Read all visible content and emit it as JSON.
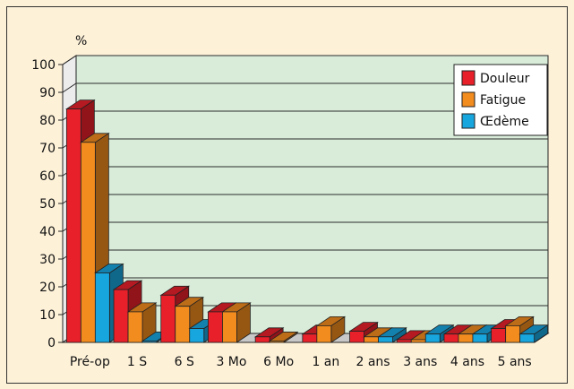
{
  "chart_data": {
    "type": "bar",
    "title": "",
    "xlabel": "",
    "ylabel": "%",
    "ylim": [
      0,
      100
    ],
    "yticks": [
      0,
      10,
      20,
      30,
      40,
      50,
      60,
      70,
      80,
      90,
      100
    ],
    "grid": true,
    "legend_position": "top-right",
    "three_d": true,
    "categories": [
      "Pré-op",
      "1 S",
      "6 S",
      "3 Mo",
      "6 Mo",
      "1 an",
      "2 ans",
      "3 ans",
      "4 ans",
      "5 ans"
    ],
    "series": [
      {
        "name": "Douleur",
        "color": "#e8202a",
        "values": [
          84,
          19,
          17,
          11,
          2,
          3,
          4,
          1,
          3,
          5
        ]
      },
      {
        "name": "Fatigue",
        "color": "#f28c1e",
        "values": [
          72,
          11,
          13,
          11,
          0.5,
          6,
          2,
          1,
          3,
          6
        ]
      },
      {
        "name": "Œdème",
        "color": "#18a6df",
        "values": [
          25,
          0.5,
          5,
          0,
          0,
          0,
          2,
          3,
          3,
          3
        ]
      }
    ],
    "colors": {
      "plot_background": "#d8ecd9",
      "page_background": "#fdf1d8",
      "grid": "#2b2b2b",
      "floor": "#c8c8c8"
    }
  }
}
